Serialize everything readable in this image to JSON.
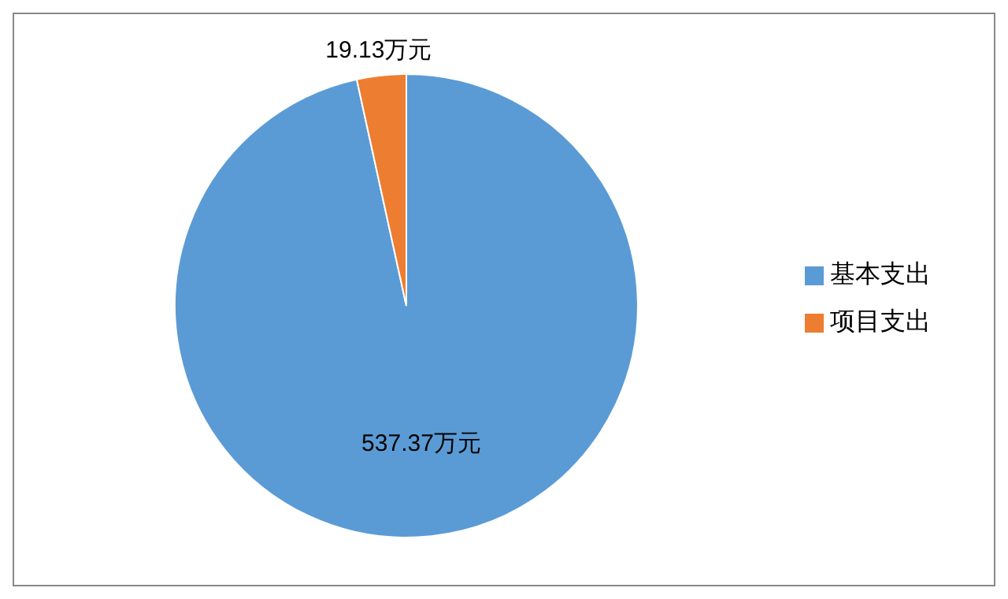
{
  "chart_data": {
    "type": "pie",
    "categories": [
      "基本支出",
      "项目支出"
    ],
    "values": [
      537.37,
      19.13
    ],
    "colors": [
      "#5b9bd5",
      "#ed7d31"
    ],
    "value_labels": [
      "537.37万元",
      "19.13万元"
    ],
    "legend": "right"
  }
}
